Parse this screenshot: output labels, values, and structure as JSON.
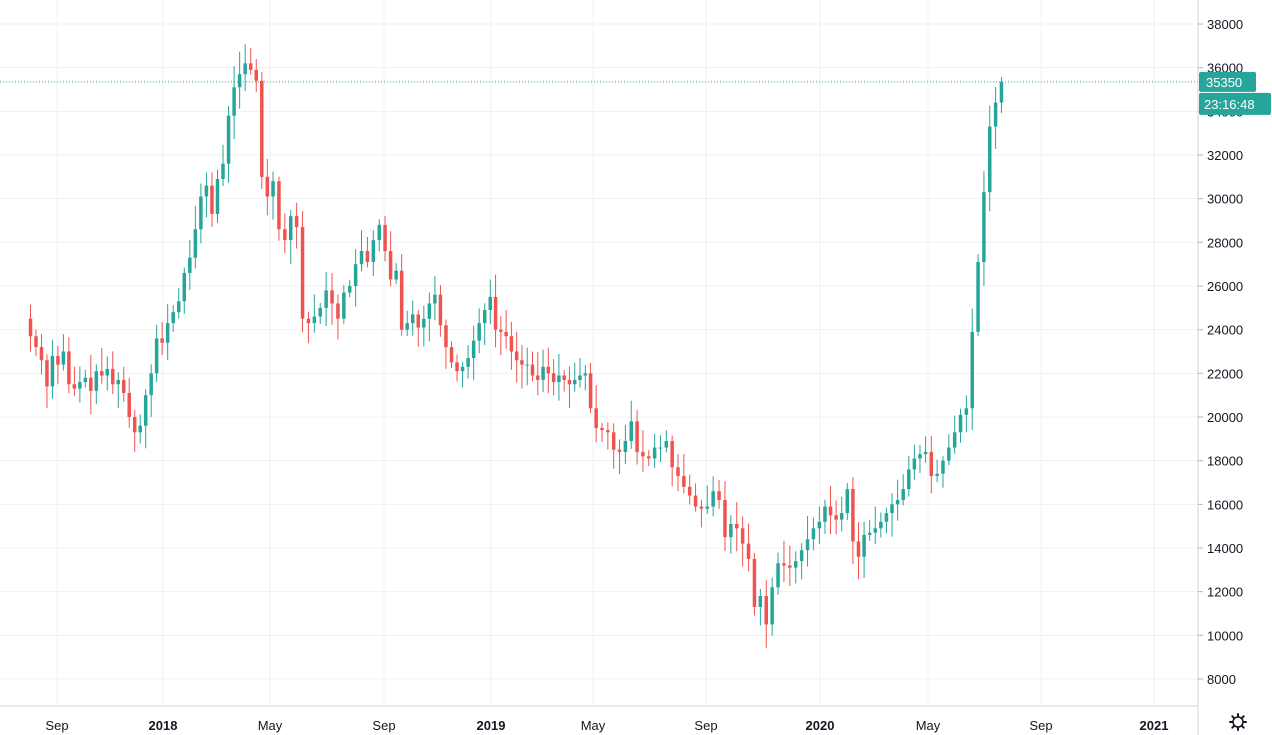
{
  "chart_data": {
    "type": "candlestick",
    "interval": "weekly",
    "colors": {
      "up": "#26a69a",
      "down": "#ef5350",
      "grid": "#eef0f3",
      "axis": "#9598a1",
      "text": "#131722"
    },
    "y_axis": {
      "min": 7000,
      "max": 39000,
      "ticks": [
        "8000",
        "10000",
        "12000",
        "14000",
        "16000",
        "18000",
        "20000",
        "22000",
        "24000",
        "26000",
        "28000",
        "30000",
        "32000",
        "34000",
        "36000",
        "38000"
      ]
    },
    "x_axis": {
      "start_month": 7.0,
      "end_month": 42.6,
      "ticks": [
        {
          "label": "Sep",
          "m": 8.0,
          "year": false
        },
        {
          "label": "2018",
          "m": 12.0,
          "year": true
        },
        {
          "label": "May",
          "m": 16.0,
          "year": false
        },
        {
          "label": "Sep",
          "m": 20.0,
          "year": false
        },
        {
          "label": "2019",
          "m": 24.0,
          "year": true
        },
        {
          "label": "May",
          "m": 28.0,
          "year": false
        },
        {
          "label": "Sep",
          "m": 32.0,
          "year": false
        },
        {
          "label": "2020",
          "m": 36.0,
          "year": true
        },
        {
          "label": "May",
          "m": 40.0,
          "year": false
        },
        {
          "label": "Sep",
          "m": 44.0,
          "year": false
        },
        {
          "label": "2021",
          "m": 48.0,
          "year": true
        }
      ]
    },
    "last_price": {
      "value": 35350,
      "label": "35350",
      "countdown": "23:16:48"
    },
    "weekly_closes": [
      23700,
      23200,
      22600,
      21400,
      22800,
      22400,
      23000,
      21500,
      21300,
      21600,
      21800,
      21200,
      22100,
      21900,
      22200,
      21500,
      21700,
      21100,
      20000,
      19300,
      19600,
      21000,
      22000,
      23600,
      23400,
      24300,
      24800,
      25300,
      26600,
      27300,
      28600,
      30100,
      30600,
      29300,
      30900,
      31600,
      33800,
      35100,
      35700,
      36200,
      35900,
      35400,
      31000,
      30100,
      30800,
      28600,
      28100,
      29200,
      28700,
      24500,
      24300,
      24600,
      25000,
      25800,
      25200,
      24500,
      25700,
      26000,
      27000,
      27600,
      27100,
      28100,
      28800,
      27600,
      26300,
      26700,
      24000,
      24300,
      24700,
      24100,
      24500,
      25200,
      25600,
      24200,
      23200,
      22500,
      22100,
      22300,
      22700,
      23500,
      24300,
      24900,
      25500,
      24000,
      23900,
      23700,
      23000,
      22600,
      22400,
      22400,
      21900,
      21700,
      22300,
      22000,
      21600,
      21900,
      21700,
      21500,
      21700,
      21900,
      22000,
      20400,
      19500,
      19400,
      19300,
      18500,
      18400,
      18900,
      19800,
      18400,
      18200,
      18100,
      18600,
      18600,
      18900,
      17700,
      17300,
      16800,
      16400,
      15900,
      15800,
      15900,
      16600,
      16200,
      14500,
      15100,
      14900,
      14200,
      13500,
      11300,
      11800,
      10500,
      12200,
      13300,
      13200,
      13100,
      13400,
      13900,
      14400,
      14900,
      15200,
      15900,
      15500,
      15300,
      15600,
      16700,
      14300,
      13600,
      14600,
      14700,
      14900,
      15200,
      15600,
      16000,
      16200,
      16700,
      17600,
      18100,
      18300,
      18400,
      17300,
      17400,
      18000,
      18600,
      19300,
      20100,
      20400,
      23900,
      27100,
      30300,
      33300,
      34400,
      35350
    ]
  }
}
